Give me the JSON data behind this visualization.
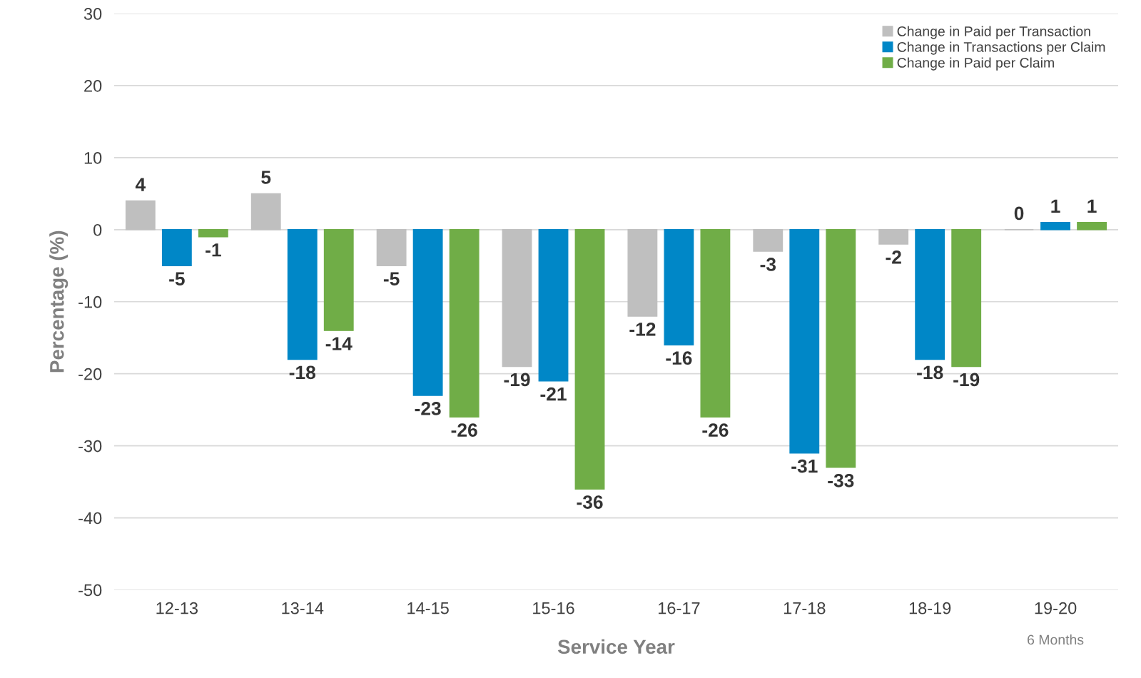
{
  "chart_data": {
    "type": "bar",
    "xlabel": "Service Year",
    "ylabel": "Percentage (%)",
    "categories": [
      "12-13",
      "13-14",
      "14-15",
      "15-16",
      "16-17",
      "17-18",
      "18-19",
      "19-20"
    ],
    "series": [
      {
        "name": "Change in Paid per Transaction",
        "color": "#bfbfbf",
        "values": [
          4,
          5,
          -5,
          -19,
          -12,
          -3,
          -2,
          0
        ]
      },
      {
        "name": "Change in Transactions per Claim",
        "color": "#0087c7",
        "values": [
          -5,
          -18,
          -23,
          -21,
          -16,
          -31,
          -18,
          1
        ]
      },
      {
        "name": "Change in Paid per Claim",
        "color": "#70ad47",
        "values": [
          -1,
          -14,
          -26,
          -36,
          -26,
          -33,
          -19,
          1
        ]
      }
    ],
    "ylim": [
      -50,
      30
    ],
    "yticks": [
      -50,
      -40,
      -30,
      -20,
      -10,
      0,
      10,
      20,
      30
    ],
    "grid": "y",
    "legend": "top right",
    "data_labels": true,
    "annotations": [
      "6 Months"
    ]
  }
}
